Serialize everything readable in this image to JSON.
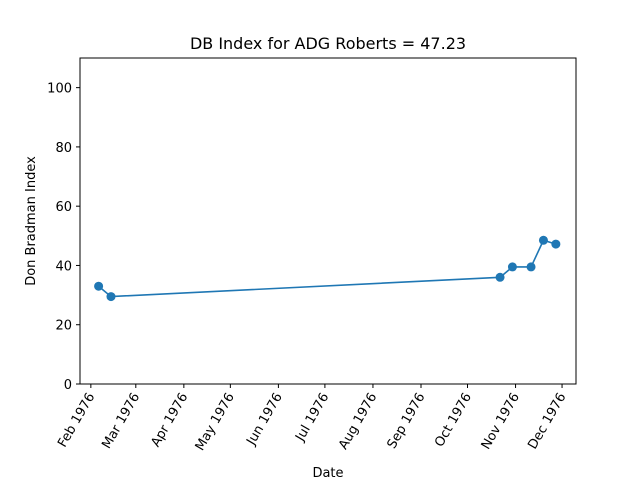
{
  "chart_data": {
    "type": "line",
    "title": "DB Index for ADG Roberts = 47.23",
    "xlabel": "Date",
    "ylabel": "Don Bradman Index",
    "ylim": [
      0,
      110
    ],
    "xlim": [
      "1976-01-25",
      "1976-12-10"
    ],
    "yticks": [
      0,
      20,
      40,
      60,
      80,
      100
    ],
    "xticks": [
      {
        "date": "1976-02-01",
        "label": "Feb 1976"
      },
      {
        "date": "1976-03-01",
        "label": "Mar 1976"
      },
      {
        "date": "1976-04-01",
        "label": "Apr 1976"
      },
      {
        "date": "1976-05-01",
        "label": "May 1976"
      },
      {
        "date": "1976-06-01",
        "label": "Jun 1976"
      },
      {
        "date": "1976-07-01",
        "label": "Jul 1976"
      },
      {
        "date": "1976-08-01",
        "label": "Aug 1976"
      },
      {
        "date": "1976-09-01",
        "label": "Sep 1976"
      },
      {
        "date": "1976-10-01",
        "label": "Oct 1976"
      },
      {
        "date": "1976-11-01",
        "label": "Nov 1976"
      },
      {
        "date": "1976-12-01",
        "label": "Dec 1976"
      }
    ],
    "series": [
      {
        "color": "#1f77b4",
        "marker": "circle",
        "points": [
          {
            "x": "1976-02-06",
            "y": 33.0
          },
          {
            "x": "1976-02-14",
            "y": 29.5
          },
          {
            "x": "1976-10-22",
            "y": 36.0
          },
          {
            "x": "1976-10-30",
            "y": 39.5
          },
          {
            "x": "1976-11-11",
            "y": 39.5
          },
          {
            "x": "1976-11-19",
            "y": 48.5
          },
          {
            "x": "1976-11-27",
            "y": 47.2
          }
        ]
      }
    ],
    "grid": false,
    "legend": "none"
  }
}
